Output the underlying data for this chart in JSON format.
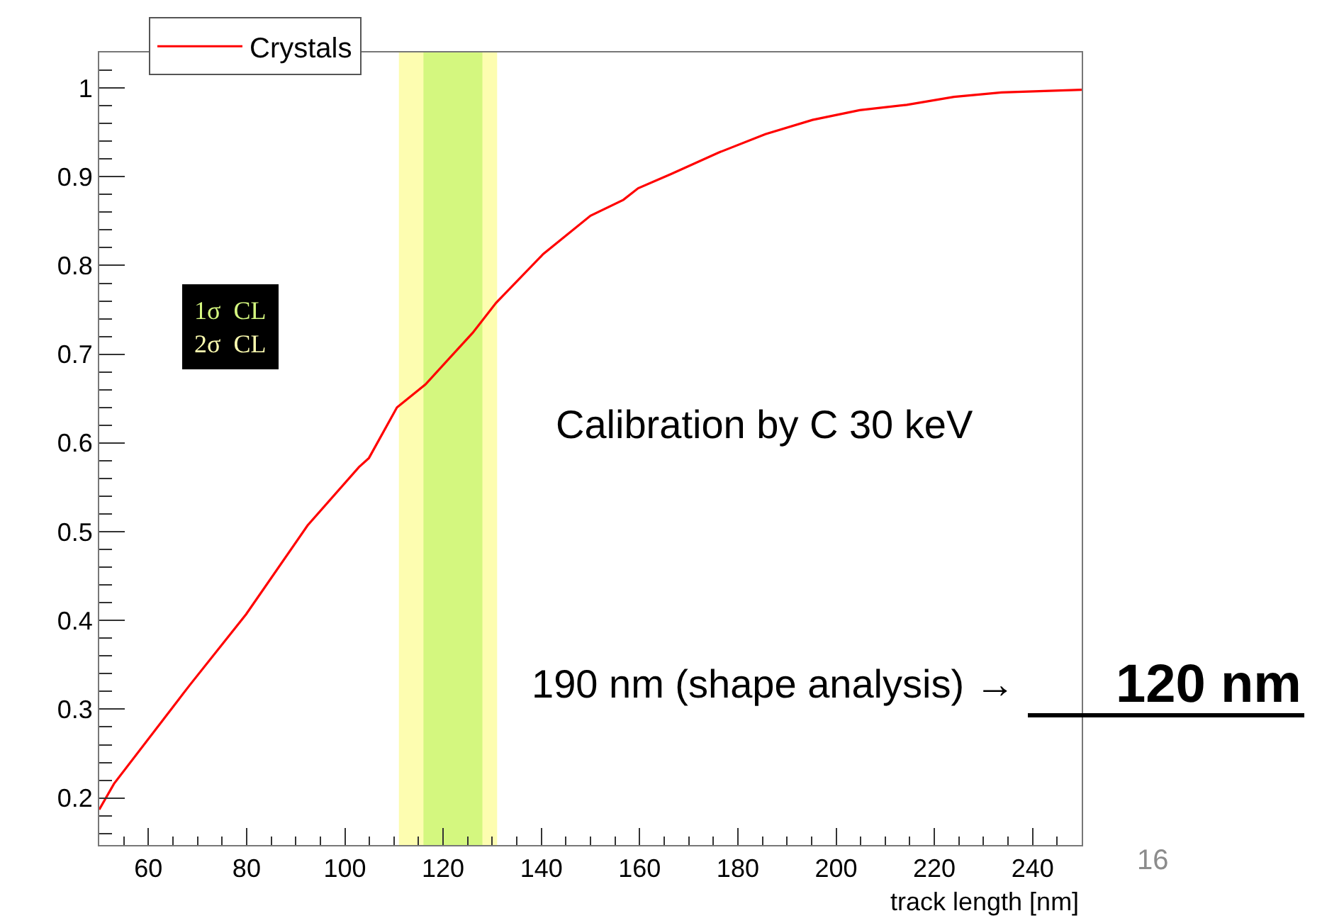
{
  "chart_data": {
    "type": "line",
    "xlabel": "track length [nm]",
    "x": [
      50,
      53,
      68.4,
      79.9,
      92.4,
      102.9,
      104.9,
      110.6,
      116.4,
      126,
      130.8,
      140.4,
      150,
      156.7,
      159.7,
      166.4,
      176,
      185.6,
      195.2,
      204.8,
      214.4,
      224,
      233.7,
      250
    ],
    "series": [
      {
        "name": "Crystals",
        "color": "#ff0000",
        "values": [
          0.187,
          0.216,
          0.327,
          0.407,
          0.507,
          0.573,
          0.583,
          0.64,
          0.666,
          0.724,
          0.758,
          0.813,
          0.856,
          0.874,
          0.887,
          0.903,
          0.927,
          0.948,
          0.964,
          0.975,
          0.981,
          0.99,
          0.995,
          0.998
        ]
      }
    ],
    "xlim": [
      50,
      250
    ],
    "xticks": [
      60,
      80,
      100,
      120,
      140,
      160,
      180,
      200,
      220,
      240
    ],
    "ylim": [
      0.147,
      1.04
    ],
    "yticks": [
      0.2,
      0.3,
      0.4,
      0.5,
      0.6,
      0.7,
      0.8,
      0.9,
      1
    ],
    "bands": [
      {
        "axis": "x",
        "from": 111,
        "to": 131,
        "label": "2σ  CL",
        "color": "#fdfdb0"
      },
      {
        "axis": "x",
        "from": 116,
        "to": 128,
        "label": "1σ  CL",
        "color": "#d4f77f"
      }
    ],
    "annotations": [
      "Calibration by C 30 keV",
      "190 nm (shape analysis) →",
      "120 nm",
      "16"
    ],
    "legend": "top left",
    "grid": false,
    "marker": "none",
    "line_style": "solid"
  }
}
